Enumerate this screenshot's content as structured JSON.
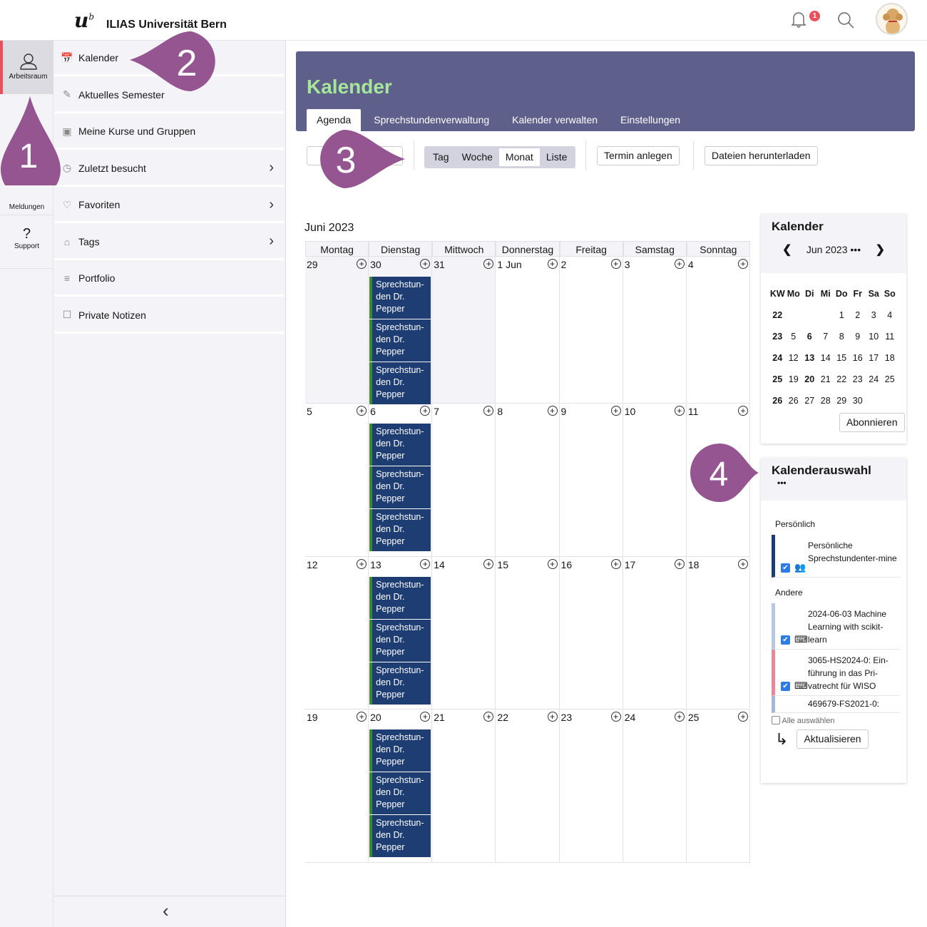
{
  "topbar": {
    "logo": "u",
    "logo_sup": "b",
    "title": "ILIAS Universität Bern",
    "notification_count": "1",
    "icons": [
      "bell-icon",
      "search-icon",
      "avatar"
    ]
  },
  "rail": [
    {
      "label": "Arbeitsraum",
      "icon": "user-icon",
      "active": true
    },
    {
      "label": "Meldungen",
      "icon": "bell-icon"
    },
    {
      "label": "Support",
      "icon": "question-icon"
    }
  ],
  "menu": [
    {
      "label": "Kalender",
      "icon": "calendar-icon"
    },
    {
      "label": "Aktuelles Semester",
      "icon": "lamp-icon"
    },
    {
      "label": "Meine Kurse und Gruppen",
      "icon": "group-icon"
    },
    {
      "label": "Zuletzt besucht",
      "icon": "clock-icon",
      "chevron": true
    },
    {
      "label": "Favoriten",
      "icon": "heart-icon",
      "chevron": true
    },
    {
      "label": "Tags",
      "icon": "tag-icon",
      "chevron": true
    },
    {
      "label": "Portfolio",
      "icon": "portfolio-icon"
    },
    {
      "label": "Private Notizen",
      "icon": "note-icon"
    }
  ],
  "header": {
    "title": "Kalender",
    "tabs": [
      "Agenda",
      "Sprechstundenverwaltung",
      "Kalender verwalten",
      "Einstellungen"
    ],
    "active_tab": "Agenda"
  },
  "toolbar": {
    "views": [
      "Tag",
      "Woche",
      "Monat",
      "Liste"
    ],
    "selected_view": "Monat",
    "new_event": "Termin anlegen",
    "download": "Dateien herunterladen"
  },
  "calendar": {
    "month_label": "Juni 2023",
    "weekdays": [
      "Montag",
      "Dienstag",
      "Mittwoch",
      "Donnerstag",
      "Freitag",
      "Samstag",
      "Sonntag"
    ],
    "weeks": [
      [
        "29",
        "30",
        "31",
        "1 Jun",
        "2",
        "3",
        "4"
      ],
      [
        "5",
        "6",
        "7",
        "8",
        "9",
        "10",
        "11"
      ],
      [
        "12",
        "13",
        "14",
        "15",
        "16",
        "17",
        "18"
      ],
      [
        "19",
        "20",
        "21",
        "22",
        "23",
        "24",
        "25"
      ]
    ],
    "outside_month_days": [
      "29",
      "30",
      "31"
    ],
    "event_title": "Sprechstun-den Dr. Pepper",
    "event_lines": [
      "Sprechstun-",
      "den Dr.",
      "Pepper"
    ],
    "events_per_tuesday": 3,
    "event_color": "#1e3d73"
  },
  "mini_calendar": {
    "title": "Kalender",
    "month": "Jun 2023",
    "more": "•••",
    "headers": [
      "KW",
      "Mo",
      "Di",
      "Mi",
      "Do",
      "Fr",
      "Sa",
      "So"
    ],
    "rows": [
      [
        "22",
        "",
        "",
        "",
        "1",
        "2",
        "3",
        "4"
      ],
      [
        "23",
        "5",
        "6",
        "7",
        "8",
        "9",
        "10",
        "11"
      ],
      [
        "24",
        "12",
        "13",
        "14",
        "15",
        "16",
        "17",
        "18"
      ],
      [
        "25",
        "19",
        "20",
        "21",
        "22",
        "23",
        "24",
        "25"
      ],
      [
        "26",
        "26",
        "27",
        "28",
        "29",
        "30",
        "",
        ""
      ]
    ],
    "bold_days": [
      "6",
      "13",
      "20"
    ],
    "subscribe_button": "Abonnieren"
  },
  "selection": {
    "title": "Kalenderauswahl",
    "more": "•••",
    "group_personal": "Persönlich",
    "group_other": "Andere",
    "items": [
      {
        "label": "Persönliche Sprechstundenter-mine",
        "color": "#1e3d73",
        "checked": true,
        "icon": "users-icon"
      },
      {
        "label": "2024-06-03 Machine Learning with scikit-learn",
        "color": "#b9c7e3",
        "checked": true,
        "icon": "presentation-icon"
      },
      {
        "label": "3065-HS2024-0: Ein-führung in das Pri-vatrecht für WISO",
        "color": "#e8899a",
        "checked": true,
        "icon": "presentation-icon"
      },
      {
        "label": "469679-FS2021-0:",
        "color": "#a4b8d8",
        "checked": false,
        "icon": ""
      }
    ],
    "select_all": "Alle auswählen",
    "refresh": "Aktualisieren"
  },
  "markers": [
    "1",
    "2",
    "3",
    "4"
  ],
  "colors": {
    "header_bg": "#5e5f8a",
    "title": "#a6e69a",
    "marker": "#945591",
    "active_rail": "#e8505b"
  }
}
